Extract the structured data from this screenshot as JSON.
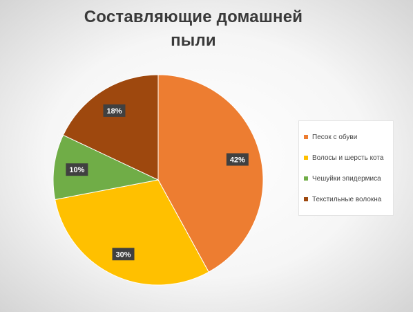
{
  "chart_data": {
    "type": "pie",
    "title": "Составляющие домашней пыли",
    "categories": [
      "Песок с обуви",
      "Волосы и шерсть кота",
      "Чешуйки эпидермиса",
      "Текстильные волокна"
    ],
    "values": [
      42,
      30,
      10,
      18
    ],
    "data_labels": [
      "42%",
      "30%",
      "10%",
      "18%"
    ],
    "colors": [
      "#ED7D31",
      "#FFC000",
      "#70AD47",
      "#9E480E"
    ],
    "legend_position": "right"
  }
}
